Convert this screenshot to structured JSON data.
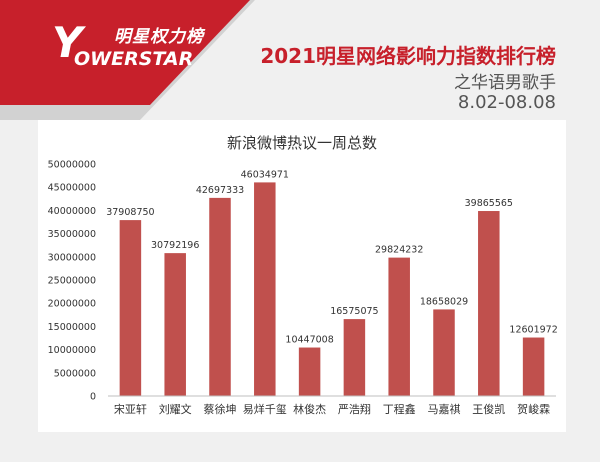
{
  "header": {
    "logo_cn": "明星权力榜",
    "logo_y": "Y",
    "logo_en": "OWERSTAR",
    "title": "2021明星网络影响力指数排行榜",
    "subtitle": "之华语男歌手",
    "date_range": "8.02-08.08"
  },
  "colors": {
    "brand_red": "#c7202b",
    "bar": "#c0504d"
  },
  "chart_data": {
    "type": "bar",
    "title": "新浪微博热议一周总数",
    "xlabel": "",
    "ylabel": "",
    "categories": [
      "宋亚轩",
      "刘耀文",
      "蔡徐坤",
      "易烊千玺",
      "林俊杰",
      "严浩翔",
      "丁程鑫",
      "马嘉祺",
      "王俊凯",
      "贺峻霖"
    ],
    "values": [
      37908750,
      30792196,
      42697333,
      46034971,
      10447008,
      16575075,
      29824232,
      18658029,
      39865565,
      12601972
    ],
    "data_labels": [
      "37908750",
      "30792196",
      "42697333",
      "46034971",
      "10447008",
      "16575075",
      "29824232",
      "18658029",
      "39865565",
      "12601972"
    ],
    "ylim": [
      0,
      50000000
    ],
    "y_ticks": [
      0,
      5000000,
      10000000,
      15000000,
      20000000,
      25000000,
      30000000,
      35000000,
      40000000,
      45000000,
      50000000
    ],
    "y_tick_labels": [
      "0",
      "5000000",
      "10000000",
      "15000000",
      "20000000",
      "25000000",
      "30000000",
      "35000000",
      "40000000",
      "45000000",
      "50000000"
    ],
    "grid": false,
    "legend": "none"
  }
}
